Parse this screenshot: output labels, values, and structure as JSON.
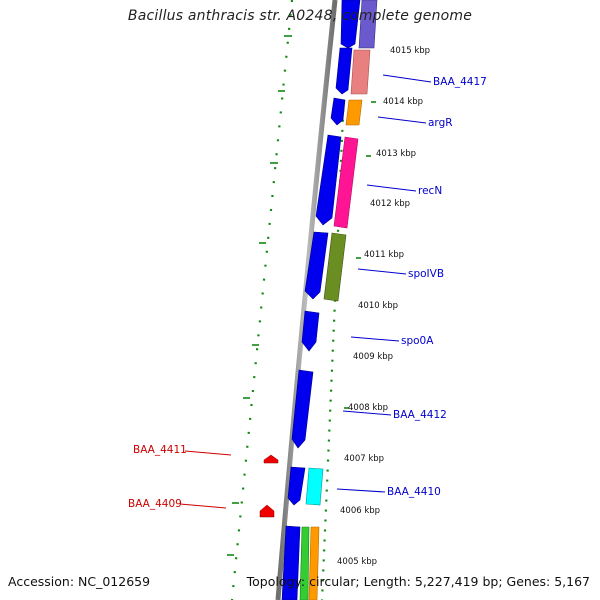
{
  "title": "Bacillus anthracis str. A0248, complete genome",
  "footer": {
    "accession": "Accession: NC_012659",
    "summary": "Topology: circular; Length: 5,227,419 bp; Genes: 5,167"
  },
  "kbp_ticks": [
    "4015 kbp",
    "4014 kbp",
    "4013 kbp",
    "4012 kbp",
    "4011 kbp",
    "4010 kbp",
    "4009 kbp",
    "4008 kbp",
    "4007 kbp",
    "4006 kbp",
    "4005 kbp"
  ],
  "gene_labels_right": [
    "BAA_4417",
    "argR",
    "recN",
    "spoIVB",
    "spo0A",
    "BAA_4412",
    "BAA_4410"
  ],
  "gene_labels_left": [
    "BAA_4411",
    "BAA_4409"
  ],
  "colors": {
    "right_label": "#0000cc",
    "left_label": "#cc0000",
    "backbone": "#888888",
    "gc_track": "#008000",
    "cds_forward": "#0000ee",
    "salmon": "#e88080",
    "orange": "#ff9900",
    "magenta": "#ff1493",
    "olive": "#6b8e23",
    "cyan": "#00ffff",
    "green": "#33cc33",
    "red": "#ee0000"
  }
}
